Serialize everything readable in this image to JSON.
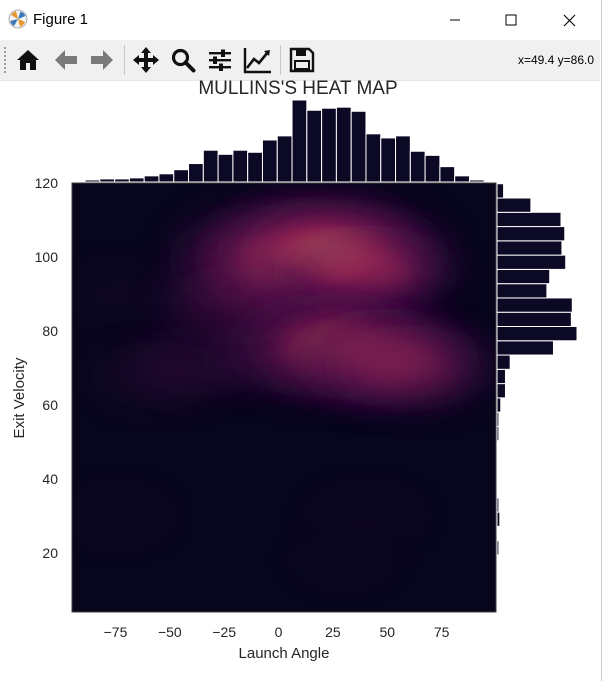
{
  "window": {
    "title": "Figure 1"
  },
  "toolbar": {
    "buttons": [
      {
        "name": "home",
        "icon": "home-icon"
      },
      {
        "name": "back",
        "icon": "arrow-left-icon"
      },
      {
        "name": "forward",
        "icon": "arrow-right-icon"
      },
      {
        "name": "pan",
        "icon": "move-icon"
      },
      {
        "name": "zoom",
        "icon": "magnifier-icon"
      },
      {
        "name": "configure-subplots",
        "icon": "sliders-icon"
      },
      {
        "name": "edit-axis",
        "icon": "line-chart-icon"
      },
      {
        "name": "save",
        "icon": "floppy-disk-icon"
      }
    ],
    "coordinates": "x=49.4 y=86.0"
  },
  "colors": {
    "bar_fill": "#0b0924",
    "bar_edge": "#ffffff",
    "heatmap_background": "#07061c"
  },
  "chart_data": {
    "type": "heatmap",
    "title": "MULLINS'S HEAT MAP",
    "xlabel": "Launch Angle",
    "ylabel": "Exit Velocity",
    "xlim": [
      -95,
      100
    ],
    "ylim": [
      4,
      120
    ],
    "xticks": [
      -75,
      -50,
      -25,
      0,
      25,
      50,
      75
    ],
    "yticks": [
      20,
      40,
      60,
      80,
      100,
      120
    ],
    "colormap": "rocket",
    "density_hotspots": [
      {
        "x": 8,
        "y": 99,
        "intensity": 1.0
      },
      {
        "x": 25,
        "y": 101,
        "intensity": 0.85
      },
      {
        "x": 40,
        "y": 96,
        "intensity": 0.55
      },
      {
        "x": 25,
        "y": 76,
        "intensity": 0.75
      },
      {
        "x": 48,
        "y": 73,
        "intensity": 0.6
      },
      {
        "x": 60,
        "y": 70,
        "intensity": 0.45
      },
      {
        "x": -20,
        "y": 87,
        "intensity": 0.35
      },
      {
        "x": -35,
        "y": 72,
        "intensity": 0.25
      },
      {
        "x": -55,
        "y": 68,
        "intensity": 0.22
      },
      {
        "x": -5,
        "y": 72,
        "intensity": 0.2
      },
      {
        "x": -70,
        "y": 90,
        "intensity": 0.12
      },
      {
        "x": 40,
        "y": 30,
        "intensity": 0.1
      },
      {
        "x": -75,
        "y": 30,
        "intensity": 0.08
      },
      {
        "x": 30,
        "y": 18,
        "intensity": 0.06
      }
    ],
    "top_histogram": {
      "bin_start": -89,
      "bin_width": 6.8,
      "counts": [
        2,
        3,
        3,
        4,
        6,
        8,
        12,
        18,
        31,
        27,
        31,
        29,
        41,
        45,
        80,
        70,
        72,
        73,
        69,
        47,
        43,
        45,
        30,
        26,
        15,
        6,
        2
      ]
    },
    "right_histogram": {
      "bin_start": 4,
      "bin_width": 3.86,
      "counts": [
        1,
        1,
        1,
        0,
        2,
        1,
        3,
        2,
        1,
        1,
        1,
        1,
        2,
        2,
        4,
        9,
        9,
        14,
        60,
        85,
        79,
        80,
        53,
        56,
        73,
        69,
        72,
        68,
        36,
        7,
        0
      ]
    }
  }
}
